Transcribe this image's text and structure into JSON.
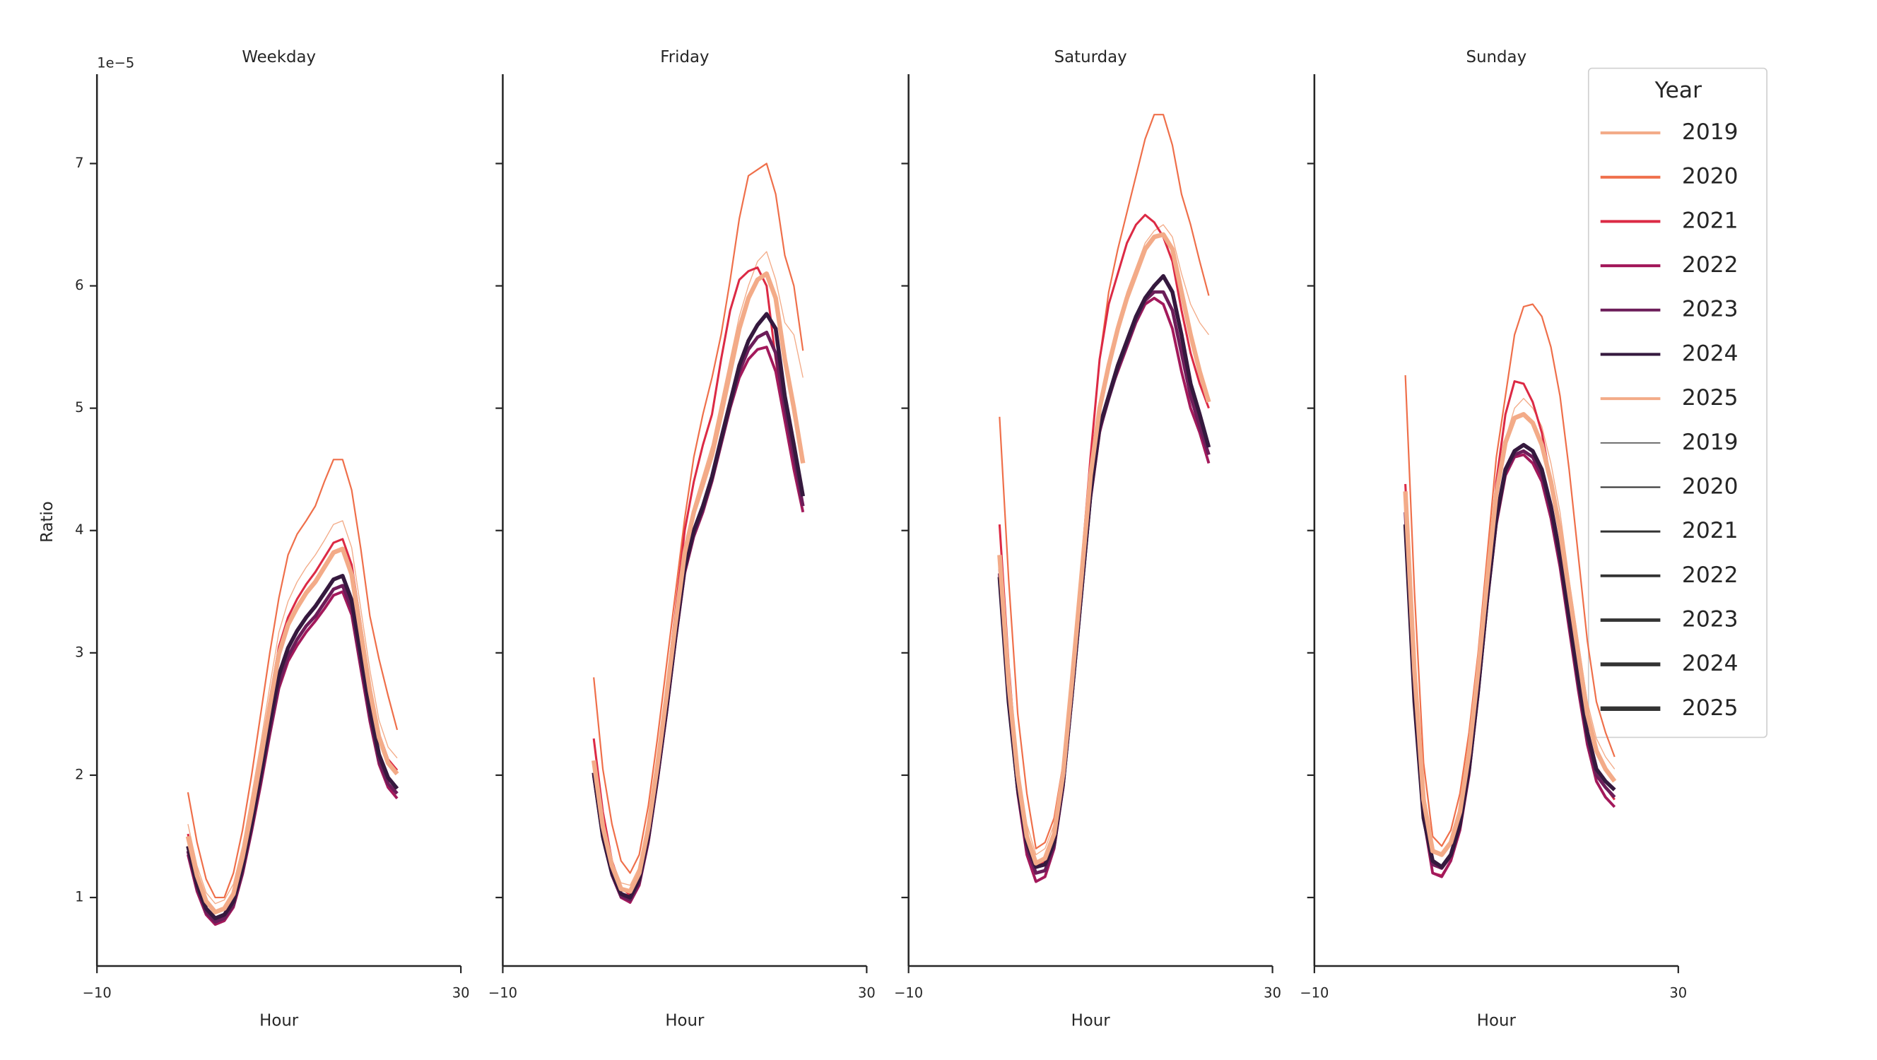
{
  "chart_data": [
    {
      "type": "line",
      "title": "Weekday",
      "xlabel": "Hour",
      "ylabel": "Ratio",
      "y_offset_label": "1e−5",
      "xlim": [
        -10,
        30
      ],
      "xticks": [
        {
          "value": -10,
          "label": "−10"
        },
        30
      ],
      "ylim": [
        0.44,
        7.73
      ],
      "yticks": [
        1,
        2,
        3,
        4,
        5,
        6,
        7
      ],
      "ytick_labels": true,
      "x": [
        0,
        1,
        2,
        3,
        4,
        5,
        6,
        7,
        8,
        9,
        10,
        11,
        12,
        13,
        14,
        15,
        16,
        17,
        18,
        19,
        20,
        21,
        22,
        23
      ],
      "series": [
        {
          "name": "2019",
          "color": "#f3ab88",
          "linewidth": 0.8,
          "values": [
            1.6,
            1.26,
            1.04,
            0.95,
            0.98,
            1.11,
            1.42,
            1.83,
            2.26,
            2.73,
            3.17,
            3.42,
            3.58,
            3.7,
            3.8,
            3.92,
            4.05,
            4.08,
            3.86,
            3.36,
            2.86,
            2.45,
            2.23,
            2.14
          ]
        },
        {
          "name": "2020",
          "color": "#ef6f4a",
          "linewidth": 1.3,
          "values": [
            1.86,
            1.45,
            1.15,
            1.0,
            1.0,
            1.2,
            1.55,
            2.0,
            2.5,
            3.0,
            3.45,
            3.8,
            3.97,
            4.08,
            4.2,
            4.4,
            4.58,
            4.58,
            4.33,
            3.85,
            3.3,
            2.95,
            2.65,
            2.37
          ]
        },
        {
          "name": "2021",
          "color": "#dc2a45",
          "linewidth": 1.8,
          "values": [
            1.52,
            1.19,
            0.97,
            0.88,
            0.91,
            1.03,
            1.34,
            1.73,
            2.16,
            2.62,
            3.05,
            3.29,
            3.44,
            3.56,
            3.66,
            3.78,
            3.9,
            3.93,
            3.72,
            3.23,
            2.74,
            2.34,
            2.13,
            2.04
          ]
        },
        {
          "name": "2022",
          "color": "#a3195b",
          "linewidth": 2.3,
          "values": [
            1.35,
            1.05,
            0.86,
            0.78,
            0.81,
            0.92,
            1.19,
            1.54,
            1.92,
            2.33,
            2.71,
            2.93,
            3.06,
            3.17,
            3.26,
            3.36,
            3.47,
            3.5,
            3.31,
            2.87,
            2.44,
            2.09,
            1.9,
            1.81
          ]
        },
        {
          "name": "2023",
          "color": "#6c1d59",
          "linewidth": 2.8,
          "values": [
            1.38,
            1.08,
            0.88,
            0.8,
            0.83,
            0.94,
            1.21,
            1.57,
            1.96,
            2.37,
            2.75,
            2.97,
            3.11,
            3.22,
            3.3,
            3.41,
            3.52,
            3.55,
            3.36,
            2.92,
            2.48,
            2.12,
            1.93,
            1.85
          ]
        },
        {
          "name": "2024",
          "color": "#35193e",
          "linewidth": 3.3,
          "values": [
            1.42,
            1.11,
            0.91,
            0.83,
            0.86,
            0.97,
            1.25,
            1.61,
            2.01,
            2.43,
            2.82,
            3.04,
            3.18,
            3.29,
            3.38,
            3.49,
            3.6,
            3.63,
            3.43,
            2.99,
            2.54,
            2.17,
            1.98,
            1.89
          ]
        },
        {
          "name": "2025",
          "color": "#f3ab88",
          "linewidth": 3.8,
          "values": [
            1.5,
            1.18,
            0.97,
            0.88,
            0.91,
            1.03,
            1.33,
            1.71,
            2.13,
            2.57,
            2.99,
            3.23,
            3.37,
            3.49,
            3.58,
            3.7,
            3.82,
            3.85,
            3.64,
            3.17,
            2.69,
            2.31,
            2.1,
            2.01
          ]
        }
      ]
    },
    {
      "type": "line",
      "title": "Friday",
      "xlabel": "Hour",
      "xlim": [
        -10,
        30
      ],
      "xticks": [
        {
          "value": -10,
          "label": "−10"
        },
        30
      ],
      "ylim": [
        0.44,
        7.73
      ],
      "yticks": [
        1,
        2,
        3,
        4,
        5,
        6,
        7
      ],
      "ytick_labels": false,
      "x": [
        0,
        1,
        2,
        3,
        4,
        5,
        6,
        7,
        8,
        9,
        10,
        11,
        12,
        13,
        14,
        15,
        16,
        17,
        18,
        19,
        20,
        21,
        22,
        23
      ],
      "series": [
        {
          "name": "2019",
          "color": "#f3ab88",
          "linewidth": 0.8,
          "values": [
            2.1,
            1.6,
            1.3,
            1.12,
            1.1,
            1.25,
            1.65,
            2.15,
            2.7,
            3.3,
            3.85,
            4.2,
            4.45,
            4.7,
            5.05,
            5.4,
            5.75,
            6.0,
            6.2,
            6.28,
            6.05,
            5.7,
            5.6,
            5.25
          ]
        },
        {
          "name": "2020",
          "color": "#ef6f4a",
          "linewidth": 1.3,
          "values": [
            2.8,
            2.05,
            1.6,
            1.3,
            1.2,
            1.35,
            1.75,
            2.3,
            2.9,
            3.5,
            4.1,
            4.6,
            4.95,
            5.25,
            5.6,
            6.05,
            6.55,
            6.9,
            6.95,
            7.0,
            6.75,
            6.25,
            6.0,
            5.47
          ]
        },
        {
          "name": "2021",
          "color": "#dc2a45",
          "linewidth": 1.8,
          "values": [
            2.3,
            1.7,
            1.3,
            1.08,
            1.02,
            1.2,
            1.6,
            2.1,
            2.7,
            3.35,
            4.0,
            4.4,
            4.7,
            4.95,
            5.4,
            5.8,
            6.05,
            6.12,
            6.15,
            6.0,
            5.4,
            4.9,
            4.5,
            4.2
          ]
        },
        {
          "name": "2022",
          "color": "#a3195b",
          "linewidth": 2.3,
          "values": [
            2.0,
            1.48,
            1.18,
            1.0,
            0.96,
            1.1,
            1.45,
            1.95,
            2.5,
            3.1,
            3.65,
            3.95,
            4.15,
            4.4,
            4.7,
            5.0,
            5.25,
            5.4,
            5.48,
            5.5,
            5.3,
            4.9,
            4.5,
            4.15
          ]
        },
        {
          "name": "2023",
          "color": "#6c1d59",
          "linewidth": 2.8,
          "values": [
            2.0,
            1.49,
            1.19,
            1.01,
            0.98,
            1.12,
            1.47,
            1.97,
            2.52,
            3.12,
            3.67,
            3.97,
            4.17,
            4.42,
            4.72,
            5.02,
            5.3,
            5.48,
            5.58,
            5.62,
            5.45,
            5.0,
            4.6,
            4.2
          ]
        },
        {
          "name": "2024",
          "color": "#35193e",
          "linewidth": 3.3,
          "values": [
            2.02,
            1.5,
            1.2,
            1.03,
            1.0,
            1.15,
            1.5,
            2.0,
            2.55,
            3.15,
            3.7,
            4.0,
            4.2,
            4.44,
            4.75,
            5.05,
            5.35,
            5.55,
            5.68,
            5.77,
            5.65,
            5.1,
            4.7,
            4.28
          ]
        },
        {
          "name": "2025",
          "color": "#f3ab88",
          "linewidth": 3.8,
          "values": [
            2.12,
            1.58,
            1.26,
            1.07,
            1.05,
            1.2,
            1.57,
            2.08,
            2.65,
            3.25,
            3.82,
            4.15,
            4.38,
            4.62,
            4.95,
            5.3,
            5.65,
            5.9,
            6.05,
            6.1,
            5.9,
            5.4,
            5.0,
            4.55
          ]
        }
      ]
    },
    {
      "type": "line",
      "title": "Saturday",
      "xlabel": "Hour",
      "xlim": [
        -10,
        30
      ],
      "xticks": [
        {
          "value": -10,
          "label": "−10"
        },
        30
      ],
      "ylim": [
        0.44,
        7.73
      ],
      "yticks": [
        1,
        2,
        3,
        4,
        5,
        6,
        7
      ],
      "ytick_labels": false,
      "x": [
        0,
        1,
        2,
        3,
        4,
        5,
        6,
        7,
        8,
        9,
        10,
        11,
        12,
        13,
        14,
        15,
        16,
        17,
        18,
        19,
        20,
        21,
        22,
        23
      ],
      "series": [
        {
          "name": "2019",
          "color": "#f3ab88",
          "linewidth": 0.8,
          "values": [
            3.8,
            2.8,
            2.05,
            1.6,
            1.35,
            1.4,
            1.6,
            2.1,
            2.85,
            3.7,
            4.5,
            5.05,
            5.4,
            5.7,
            5.95,
            6.15,
            6.35,
            6.45,
            6.5,
            6.4,
            6.1,
            5.85,
            5.7,
            5.6
          ]
        },
        {
          "name": "2020",
          "color": "#ef6f4a",
          "linewidth": 1.3,
          "values": [
            4.93,
            3.6,
            2.5,
            1.85,
            1.4,
            1.45,
            1.65,
            2.1,
            2.8,
            3.7,
            4.6,
            5.4,
            5.95,
            6.3,
            6.6,
            6.9,
            7.2,
            7.4,
            7.4,
            7.15,
            6.75,
            6.5,
            6.2,
            5.92
          ]
        },
        {
          "name": "2021",
          "color": "#dc2a45",
          "linewidth": 1.8,
          "values": [
            4.05,
            2.9,
            2.0,
            1.5,
            1.25,
            1.3,
            1.5,
            2.0,
            2.8,
            3.7,
            4.6,
            5.4,
            5.85,
            6.1,
            6.35,
            6.5,
            6.58,
            6.52,
            6.4,
            6.2,
            5.8,
            5.45,
            5.2,
            5.0
          ]
        },
        {
          "name": "2022",
          "color": "#a3195b",
          "linewidth": 2.3,
          "values": [
            3.7,
            2.6,
            1.85,
            1.35,
            1.13,
            1.17,
            1.4,
            1.9,
            2.65,
            3.45,
            4.25,
            4.8,
            5.1,
            5.3,
            5.5,
            5.7,
            5.85,
            5.9,
            5.85,
            5.65,
            5.3,
            5.0,
            4.8,
            4.55
          ]
        },
        {
          "name": "2023",
          "color": "#6c1d59",
          "linewidth": 2.8,
          "values": [
            3.65,
            2.6,
            1.88,
            1.4,
            1.2,
            1.22,
            1.42,
            1.92,
            2.68,
            3.48,
            4.28,
            4.82,
            5.08,
            5.32,
            5.52,
            5.72,
            5.88,
            5.95,
            5.95,
            5.8,
            5.45,
            5.1,
            4.85,
            4.62
          ]
        },
        {
          "name": "2024",
          "color": "#35193e",
          "linewidth": 3.3,
          "values": [
            3.62,
            2.6,
            1.9,
            1.45,
            1.25,
            1.27,
            1.45,
            1.95,
            2.7,
            3.5,
            4.3,
            4.85,
            5.1,
            5.35,
            5.55,
            5.75,
            5.9,
            6.0,
            6.08,
            5.95,
            5.6,
            5.2,
            4.95,
            4.68
          ]
        },
        {
          "name": "2025",
          "color": "#f3ab88",
          "linewidth": 3.8,
          "values": [
            3.8,
            2.75,
            2.0,
            1.5,
            1.28,
            1.32,
            1.52,
            2.02,
            2.8,
            3.62,
            4.45,
            5.0,
            5.35,
            5.65,
            5.9,
            6.1,
            6.3,
            6.4,
            6.42,
            6.3,
            5.95,
            5.6,
            5.3,
            5.05
          ]
        }
      ]
    },
    {
      "type": "line",
      "title": "Sunday",
      "xlabel": "Hour",
      "xlim": [
        -10,
        30
      ],
      "xticks": [
        {
          "value": -10,
          "label": "−10"
        },
        30
      ],
      "ylim": [
        0.44,
        7.73
      ],
      "yticks": [
        1,
        2,
        3,
        4,
        5,
        6,
        7
      ],
      "ytick_labels": false,
      "x": [
        0,
        1,
        2,
        3,
        4,
        5,
        6,
        7,
        8,
        9,
        10,
        11,
        12,
        13,
        14,
        15,
        16,
        17,
        18,
        19,
        20,
        21,
        22,
        23
      ],
      "series": [
        {
          "name": "2019",
          "color": "#f3ab88",
          "linewidth": 0.8,
          "values": [
            4.3,
            2.8,
            1.8,
            1.4,
            1.35,
            1.45,
            1.72,
            2.2,
            2.85,
            3.6,
            4.3,
            4.75,
            5.0,
            5.08,
            5.0,
            4.85,
            4.55,
            4.15,
            3.6,
            3.1,
            2.6,
            2.3,
            2.15,
            2.05
          ]
        },
        {
          "name": "2020",
          "color": "#ef6f4a",
          "linewidth": 1.3,
          "values": [
            5.27,
            3.5,
            2.1,
            1.5,
            1.42,
            1.55,
            1.85,
            2.35,
            3.0,
            3.8,
            4.6,
            5.1,
            5.6,
            5.83,
            5.85,
            5.75,
            5.5,
            5.1,
            4.5,
            3.8,
            3.1,
            2.6,
            2.35,
            2.15
          ]
        },
        {
          "name": "2021",
          "color": "#dc2a45",
          "linewidth": 1.8,
          "values": [
            4.38,
            2.85,
            1.75,
            1.2,
            1.18,
            1.3,
            1.6,
            2.1,
            2.8,
            3.6,
            4.4,
            4.95,
            5.22,
            5.2,
            5.05,
            4.8,
            4.4,
            3.95,
            3.4,
            2.85,
            2.35,
            2.0,
            1.9,
            1.8
          ]
        },
        {
          "name": "2022",
          "color": "#a3195b",
          "linewidth": 2.3,
          "values": [
            4.3,
            2.7,
            1.65,
            1.2,
            1.17,
            1.3,
            1.55,
            2.0,
            2.65,
            3.4,
            4.05,
            4.45,
            4.6,
            4.62,
            4.55,
            4.4,
            4.1,
            3.7,
            3.2,
            2.7,
            2.25,
            1.95,
            1.82,
            1.74
          ]
        },
        {
          "name": "2023",
          "color": "#6c1d59",
          "linewidth": 2.8,
          "values": [
            4.15,
            2.65,
            1.65,
            1.27,
            1.24,
            1.34,
            1.58,
            2.03,
            2.68,
            3.43,
            4.08,
            4.48,
            4.62,
            4.65,
            4.6,
            4.45,
            4.15,
            3.75,
            3.25,
            2.75,
            2.3,
            2.0,
            1.9,
            1.82
          ]
        },
        {
          "name": "2024",
          "color": "#35193e",
          "linewidth": 3.3,
          "values": [
            4.05,
            2.6,
            1.65,
            1.3,
            1.25,
            1.35,
            1.6,
            2.05,
            2.7,
            3.45,
            4.1,
            4.5,
            4.65,
            4.7,
            4.65,
            4.5,
            4.2,
            3.8,
            3.3,
            2.8,
            2.35,
            2.05,
            1.95,
            1.88
          ]
        },
        {
          "name": "2025",
          "color": "#f3ab88",
          "linewidth": 3.8,
          "values": [
            4.32,
            2.85,
            1.8,
            1.38,
            1.35,
            1.45,
            1.7,
            2.18,
            2.85,
            3.6,
            4.3,
            4.72,
            4.92,
            4.95,
            4.88,
            4.7,
            4.4,
            4.0,
            3.5,
            3.0,
            2.5,
            2.2,
            2.05,
            1.95
          ]
        }
      ]
    }
  ],
  "legend": {
    "title": "Year",
    "corner": "upper right",
    "hue_entries": [
      "2019",
      "2020",
      "2021",
      "2022",
      "2023",
      "2024",
      "2025"
    ],
    "size_entries": [
      "2019",
      "2020",
      "2021",
      "2022",
      "2023",
      "2024",
      "2025"
    ]
  }
}
